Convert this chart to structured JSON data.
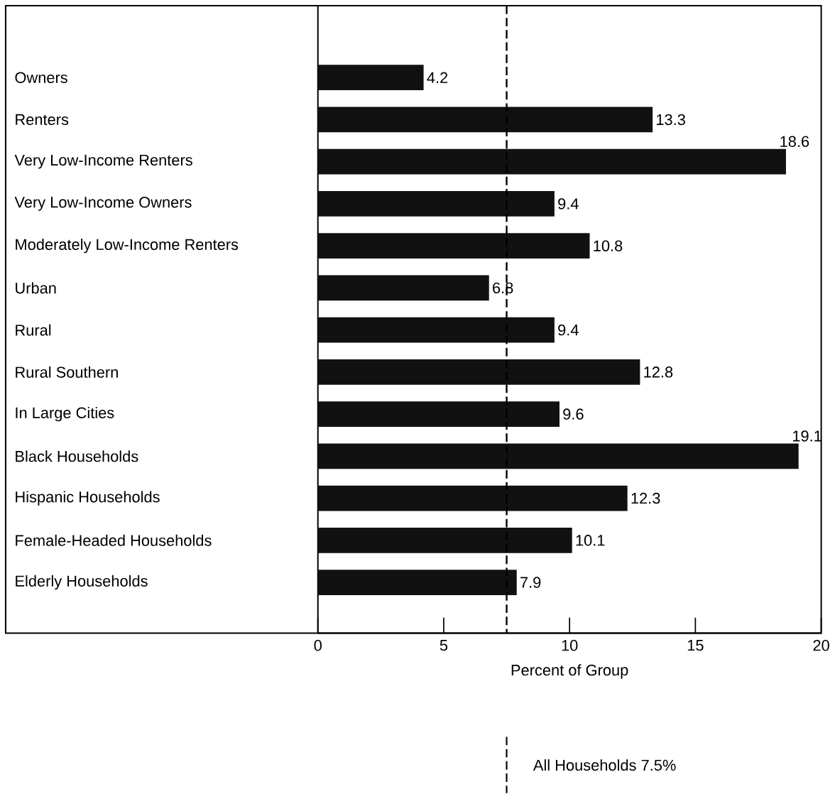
{
  "chart_data": {
    "type": "bar",
    "orientation": "horizontal",
    "xlabel": "Percent of Group",
    "categories": [
      "Owners",
      "Renters",
      "Very Low-Income Renters",
      "Very Low-Income Owners",
      "Moderately Low-Income Renters",
      "Urban",
      "Rural",
      "Rural Southern",
      "In Large Cities",
      "Black Households",
      "Hispanic Households",
      "Female-Headed Households",
      "Elderly Households"
    ],
    "values": [
      4.2,
      13.3,
      18.6,
      9.4,
      10.8,
      6.8,
      9.4,
      12.8,
      9.6,
      19.1,
      12.3,
      10.1,
      7.9
    ],
    "color": "#111111",
    "xlim": [
      0,
      20
    ],
    "xticks": [
      0,
      5,
      10,
      15,
      20
    ],
    "data_labels": true,
    "ref_lines": [
      {
        "axis": "x",
        "value": 7.5,
        "label": "All Households 7.5%",
        "line_style": "dashed"
      }
    ]
  }
}
